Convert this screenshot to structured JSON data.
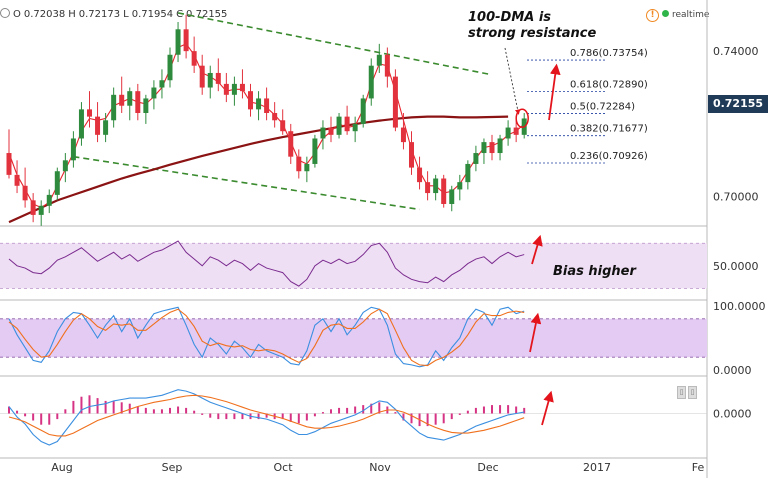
{
  "header": {
    "open_label": "O",
    "open": "0.72038",
    "high_label": "H",
    "high": "0.72173",
    "low_label": "L",
    "low": "0.71954",
    "close_label": "C",
    "close": "0.72155",
    "realtime_label": "realtime",
    "alert_icon": "alert-circle-icon",
    "status_icon": "live-dot-icon"
  },
  "annotations": {
    "dma_line1": "100-DMA is",
    "dma_line2": "strong resistance",
    "bias": "Bias higher"
  },
  "last_price": "0.72155",
  "colors": {
    "up_candle": "#2e8b3e",
    "down_candle": "#e2323d",
    "sma_fast": "#e8242e",
    "dma100": "#8b1313",
    "channel": "#3a8a2e",
    "fib": "#1f3f9f",
    "rsi_line": "#7a2b8f",
    "rsi_band": "#efdff4",
    "stoch_k": "#3b8fe0",
    "stoch_d": "#f0701d",
    "stoch_band": "#e4cbf4",
    "macd": "#3b8fe0",
    "signal": "#f0701d",
    "hist": "#d63384",
    "arrow": "#e3141c",
    "price_tag": "#1f3b57"
  },
  "chart_data": [
    {
      "type": "candlestick",
      "title": "",
      "ylim": [
        0.6925,
        0.7535
      ],
      "y_ticks": [
        "0.74000",
        "0.70000"
      ],
      "x_ticks": [
        "Aug",
        "Sep",
        "Oct",
        "Nov",
        "Dec",
        "2017",
        "Fe"
      ],
      "last_close": 0.72155,
      "candles": [
        [
          0.712,
          0.7185,
          0.705,
          0.706
        ],
        [
          0.706,
          0.71,
          0.701,
          0.703
        ],
        [
          0.703,
          0.708,
          0.697,
          0.699
        ],
        [
          0.699,
          0.701,
          0.693,
          0.695
        ],
        [
          0.695,
          0.699,
          0.692,
          0.6975
        ],
        [
          0.6975,
          0.702,
          0.6955,
          0.7005
        ],
        [
          0.7005,
          0.708,
          0.699,
          0.707
        ],
        [
          0.707,
          0.712,
          0.704,
          0.71
        ],
        [
          0.71,
          0.718,
          0.708,
          0.716
        ],
        [
          0.716,
          0.726,
          0.714,
          0.724
        ],
        [
          0.724,
          0.729,
          0.719,
          0.722
        ],
        [
          0.722,
          0.726,
          0.715,
          0.717
        ],
        [
          0.717,
          0.723,
          0.715,
          0.721
        ],
        [
          0.721,
          0.73,
          0.719,
          0.728
        ],
        [
          0.728,
          0.733,
          0.723,
          0.725
        ],
        [
          0.725,
          0.73,
          0.721,
          0.729
        ],
        [
          0.729,
          0.731,
          0.721,
          0.723
        ],
        [
          0.723,
          0.728,
          0.72,
          0.727
        ],
        [
          0.727,
          0.732,
          0.724,
          0.73
        ],
        [
          0.73,
          0.735,
          0.727,
          0.732
        ],
        [
          0.732,
          0.741,
          0.73,
          0.739
        ],
        [
          0.739,
          0.748,
          0.737,
          0.746
        ],
        [
          0.746,
          0.75,
          0.738,
          0.74
        ],
        [
          0.74,
          0.744,
          0.734,
          0.736
        ],
        [
          0.736,
          0.739,
          0.728,
          0.73
        ],
        [
          0.73,
          0.736,
          0.727,
          0.734
        ],
        [
          0.734,
          0.738,
          0.729,
          0.731
        ],
        [
          0.731,
          0.734,
          0.726,
          0.728
        ],
        [
          0.728,
          0.733,
          0.725,
          0.731
        ],
        [
          0.731,
          0.735,
          0.727,
          0.729
        ],
        [
          0.729,
          0.731,
          0.722,
          0.724
        ],
        [
          0.724,
          0.729,
          0.721,
          0.727
        ],
        [
          0.727,
          0.73,
          0.721,
          0.723
        ],
        [
          0.723,
          0.726,
          0.719,
          0.721
        ],
        [
          0.721,
          0.724,
          0.717,
          0.718
        ],
        [
          0.718,
          0.72,
          0.709,
          0.711
        ],
        [
          0.711,
          0.713,
          0.705,
          0.707
        ],
        [
          0.707,
          0.711,
          0.704,
          0.709
        ],
        [
          0.709,
          0.717,
          0.708,
          0.716
        ],
        [
          0.716,
          0.721,
          0.713,
          0.719
        ],
        [
          0.719,
          0.722,
          0.715,
          0.717
        ],
        [
          0.717,
          0.723,
          0.716,
          0.722
        ],
        [
          0.722,
          0.725,
          0.717,
          0.718
        ],
        [
          0.718,
          0.722,
          0.715,
          0.72
        ],
        [
          0.72,
          0.728,
          0.719,
          0.727
        ],
        [
          0.727,
          0.738,
          0.725,
          0.736
        ],
        [
          0.736,
          0.742,
          0.734,
          0.739
        ],
        [
          0.739,
          0.741,
          0.73,
          0.733
        ],
        [
          0.733,
          0.735,
          0.718,
          0.719
        ],
        [
          0.719,
          0.723,
          0.713,
          0.715
        ],
        [
          0.715,
          0.718,
          0.706,
          0.708
        ],
        [
          0.708,
          0.711,
          0.702,
          0.704
        ],
        [
          0.704,
          0.707,
          0.699,
          0.701
        ],
        [
          0.701,
          0.706,
          0.699,
          0.705
        ],
        [
          0.705,
          0.706,
          0.697,
          0.698
        ],
        [
          0.698,
          0.703,
          0.696,
          0.702
        ],
        [
          0.702,
          0.706,
          0.699,
          0.704
        ],
        [
          0.704,
          0.71,
          0.702,
          0.709
        ],
        [
          0.709,
          0.714,
          0.707,
          0.712
        ],
        [
          0.712,
          0.716,
          0.709,
          0.715
        ],
        [
          0.715,
          0.717,
          0.71,
          0.712
        ],
        [
          0.712,
          0.717,
          0.71,
          0.716
        ],
        [
          0.716,
          0.721,
          0.714,
          0.719
        ],
        [
          0.719,
          0.722,
          0.715,
          0.717
        ],
        [
          0.717,
          0.723,
          0.716,
          0.7215
        ]
      ],
      "series": [
        {
          "name": "100-DMA",
          "values": [
            0.693,
            0.695,
            0.697,
            0.699,
            0.7005,
            0.702,
            0.7035,
            0.705,
            0.7063,
            0.7075,
            0.7088,
            0.71,
            0.7112,
            0.7123,
            0.7134,
            0.7145,
            0.7155,
            0.7164,
            0.7172,
            0.718,
            0.7188,
            0.7196,
            0.7203,
            0.7209,
            0.7214,
            0.7218,
            0.722,
            0.722,
            0.7218,
            0.7218,
            0.7219,
            0.722
          ]
        },
        {
          "name": "Fast SMA",
          "values": [
            0.712,
            0.706,
            0.702,
            0.698,
            0.697,
            0.6985,
            0.703,
            0.7075,
            0.712,
            0.718,
            0.7215,
            0.721,
            0.7215,
            0.725,
            0.726,
            0.727,
            0.726,
            0.7255,
            0.7275,
            0.73,
            0.735,
            0.741,
            0.742,
            0.739,
            0.734,
            0.733,
            0.7315,
            0.729,
            0.7295,
            0.7295,
            0.726,
            0.7255,
            0.7245,
            0.7225,
            0.72,
            0.715,
            0.71,
            0.709,
            0.712,
            0.716,
            0.718,
            0.72,
            0.719,
            0.7195,
            0.724,
            0.731,
            0.7365,
            0.736,
            0.729,
            0.721,
            0.713,
            0.707,
            0.703,
            0.703,
            0.701,
            0.7015,
            0.7035,
            0.707,
            0.7105,
            0.7135,
            0.714,
            0.715,
            0.717,
            0.718,
            0.72
          ]
        }
      ],
      "channel": {
        "upper": [
          [
            21,
            0.7505
          ],
          [
            60,
            0.7335
          ]
        ],
        "lower": [
          [
            8,
            0.711
          ],
          [
            51,
            0.6965
          ]
        ]
      },
      "fibonacci": [
        {
          "label": "0.786(0.73754)",
          "value": 0.73754
        },
        {
          "label": "0.618(0.72890)",
          "value": 0.7289
        },
        {
          "label": "0.5(0.72284)",
          "value": 0.72284
        },
        {
          "label": "0.382(0.71677)",
          "value": 0.71677
        },
        {
          "label": "0.236(0.70926)",
          "value": 0.70926
        }
      ]
    },
    {
      "type": "line",
      "title": "",
      "y_ticks": [
        "50.0000"
      ],
      "ylim": [
        25,
        80
      ],
      "bands": [
        30,
        70
      ],
      "series": [
        {
          "name": "",
          "values": [
            56,
            50,
            48,
            44,
            43,
            48,
            55,
            58,
            62,
            66,
            60,
            54,
            58,
            62,
            56,
            60,
            54,
            58,
            62,
            64,
            68,
            72,
            62,
            56,
            50,
            58,
            55,
            50,
            55,
            52,
            46,
            52,
            48,
            46,
            44,
            36,
            32,
            38,
            50,
            55,
            52,
            56,
            52,
            54,
            60,
            68,
            70,
            62,
            48,
            42,
            38,
            36,
            35,
            40,
            36,
            42,
            46,
            52,
            56,
            58,
            52,
            58,
            62,
            58,
            60
          ]
        }
      ]
    },
    {
      "type": "line",
      "title": "",
      "y_ticks": [
        "100.0000",
        "0.0000"
      ],
      "ylim": [
        0,
        100
      ],
      "bands": [
        20,
        80
      ],
      "series": [
        {
          "name": "",
          "values": [
            80,
            55,
            35,
            15,
            12,
            30,
            60,
            80,
            90,
            88,
            70,
            50,
            70,
            85,
            60,
            80,
            50,
            70,
            88,
            92,
            95,
            98,
            70,
            40,
            20,
            50,
            40,
            25,
            45,
            35,
            20,
            40,
            30,
            25,
            20,
            10,
            8,
            30,
            70,
            80,
            60,
            80,
            55,
            70,
            90,
            98,
            95,
            70,
            25,
            10,
            8,
            5,
            8,
            30,
            15,
            35,
            50,
            80,
            95,
            90,
            70,
            95,
            98,
            88,
            92
          ]
        },
        {
          "name": "",
          "values": [
            75,
            65,
            48,
            32,
            20,
            22,
            40,
            60,
            78,
            88,
            80,
            68,
            62,
            72,
            70,
            72,
            62,
            62,
            72,
            82,
            90,
            95,
            85,
            68,
            45,
            38,
            42,
            38,
            36,
            38,
            32,
            30,
            32,
            30,
            25,
            18,
            12,
            18,
            38,
            62,
            70,
            72,
            65,
            65,
            75,
            88,
            95,
            88,
            62,
            35,
            15,
            8,
            7,
            15,
            20,
            28,
            38,
            55,
            75,
            88,
            85,
            85,
            90,
            92,
            90
          ]
        }
      ]
    },
    {
      "type": "bar",
      "title": "",
      "y_ticks": [
        "0.0000"
      ],
      "ylim": [
        -0.0055,
        0.0045
      ],
      "series": [
        {
          "name": "",
          "values": [
            0.001,
            -0.0005,
            -0.0015,
            -0.003,
            -0.004,
            -0.0045,
            -0.004,
            -0.0025,
            -0.001,
            0.0005,
            0.001,
            0.0012,
            0.0014,
            0.0018,
            0.002,
            0.0022,
            0.0022,
            0.0022,
            0.0024,
            0.0026,
            0.003,
            0.0034,
            0.0032,
            0.0028,
            0.0022,
            0.0016,
            0.0012,
            0.0008,
            0.0004,
            0.0,
            -0.0004,
            -0.0006,
            -0.0008,
            -0.0012,
            -0.0016,
            -0.0024,
            -0.003,
            -0.003,
            -0.0026,
            -0.002,
            -0.0014,
            -0.001,
            -0.0006,
            -0.0002,
            0.0004,
            0.0012,
            0.0018,
            0.0016,
            0.0006,
            -0.0008,
            -0.0018,
            -0.0028,
            -0.0034,
            -0.0036,
            -0.0038,
            -0.0034,
            -0.003,
            -0.0024,
            -0.0018,
            -0.0014,
            -0.001,
            -0.0006,
            -0.0002,
            0.0,
            0.0002
          ]
        },
        {
          "name": "",
          "values": [
            -0.0005,
            -0.0008,
            -0.0012,
            -0.0018,
            -0.0024,
            -0.003,
            -0.0032,
            -0.0032,
            -0.0028,
            -0.0022,
            -0.0016,
            -0.001,
            -0.0006,
            -0.0002,
            0.0002,
            0.0006,
            0.001,
            0.0013,
            0.0016,
            0.0018,
            0.002,
            0.0023,
            0.0025,
            0.0026,
            0.0025,
            0.0023,
            0.002,
            0.0017,
            0.0013,
            0.0009,
            0.0005,
            0.0002,
            -0.0001,
            -0.0004,
            -0.0007,
            -0.0011,
            -0.0015,
            -0.0019,
            -0.0021,
            -0.0021,
            -0.002,
            -0.0018,
            -0.0015,
            -0.0012,
            -0.0008,
            -0.0003,
            0.0002,
            0.0005,
            0.0005,
            0.0002,
            -0.0003,
            -0.0009,
            -0.0015,
            -0.002,
            -0.0024,
            -0.0027,
            -0.0028,
            -0.0028,
            -0.0026,
            -0.0024,
            -0.0021,
            -0.0018,
            -0.0014,
            -0.001,
            -0.0006
          ]
        },
        {
          "name": "",
          "values": [
            0.001,
            0.0004,
            -0.0004,
            -0.001,
            -0.0016,
            -0.0016,
            -0.0008,
            0.0006,
            0.0018,
            0.0024,
            0.0026,
            0.0022,
            0.0018,
            0.0018,
            0.0016,
            0.0014,
            0.001,
            0.0008,
            0.0006,
            0.0006,
            0.0008,
            0.001,
            0.0008,
            0.0004,
            -0.0002,
            -0.0006,
            -0.0008,
            -0.0008,
            -0.0008,
            -0.0008,
            -0.0008,
            -0.0008,
            -0.0006,
            -0.0008,
            -0.0008,
            -0.0012,
            -0.0014,
            -0.001,
            -0.0004,
            0.0002,
            0.0006,
            0.0008,
            0.0008,
            0.001,
            0.0012,
            0.0014,
            0.0016,
            0.001,
            0.0002,
            -0.001,
            -0.0014,
            -0.0018,
            -0.0018,
            -0.0016,
            -0.0014,
            -0.0008,
            -0.0002,
            0.0004,
            0.0008,
            0.001,
            0.0012,
            0.0012,
            0.0012,
            0.001,
            0.0008
          ]
        }
      ]
    }
  ]
}
